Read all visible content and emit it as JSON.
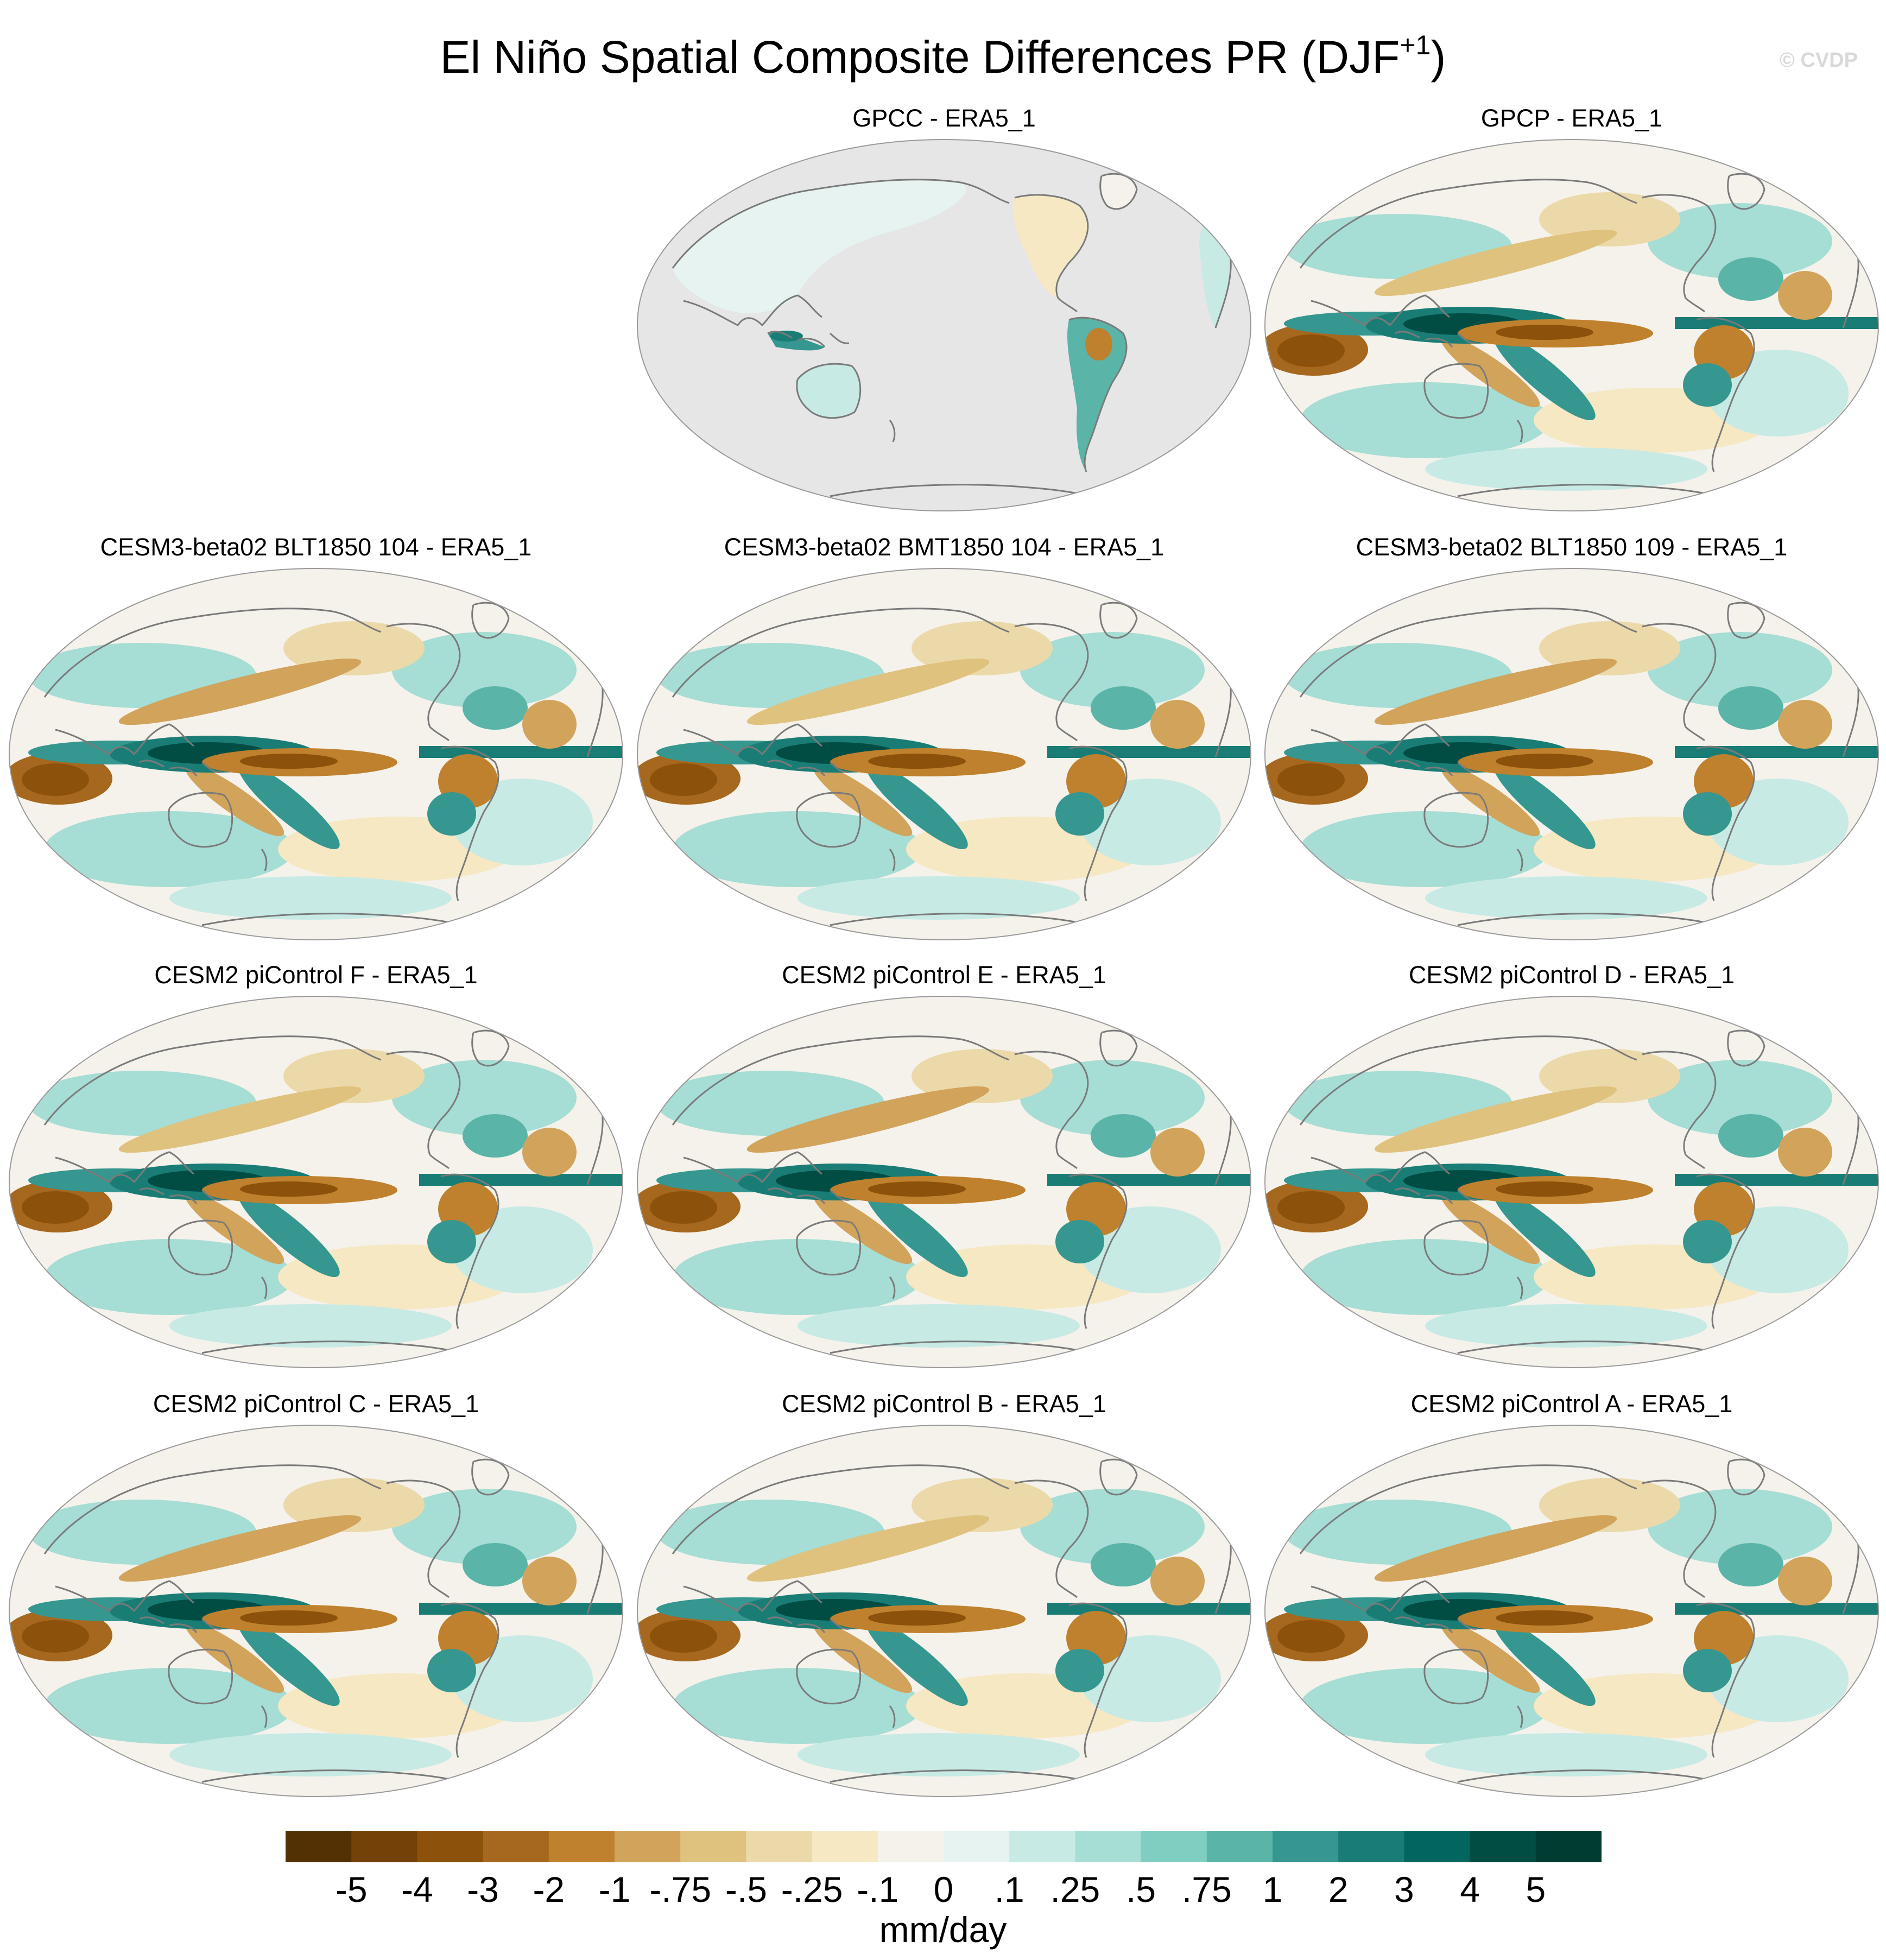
{
  "figure": {
    "title_main": "El Niño Spatial Composite Differences PR (DJF",
    "title_sup": "+1",
    "title_end": ")",
    "watermark": "© CVDP"
  },
  "panels": [
    {
      "title": "GPCC - ERA5_1",
      "fill": "land-only"
    },
    {
      "title": "GPCP - ERA5_1",
      "fill": "global"
    },
    {
      "title": "CESM3-beta02 BLT1850 104 - ERA5_1",
      "fill": "global"
    },
    {
      "title": "CESM3-beta02 BMT1850 104 - ERA5_1",
      "fill": "global"
    },
    {
      "title": "CESM3-beta02 BLT1850 109 - ERA5_1",
      "fill": "global"
    },
    {
      "title": "CESM2 piControl F - ERA5_1",
      "fill": "global"
    },
    {
      "title": "CESM2 piControl E - ERA5_1",
      "fill": "global"
    },
    {
      "title": "CESM2 piControl D - ERA5_1",
      "fill": "global"
    },
    {
      "title": "CESM2 piControl C - ERA5_1",
      "fill": "global"
    },
    {
      "title": "CESM2 piControl B - ERA5_1",
      "fill": "global"
    },
    {
      "title": "CESM2 piControl A - ERA5_1",
      "fill": "global"
    }
  ],
  "colorbar": {
    "units": "mm/day",
    "labels": [
      "-5",
      "-4",
      "-3",
      "-2",
      "-1",
      "-.75",
      "-.5",
      "-.25",
      "-.1",
      "0",
      ".1",
      ".25",
      ".5",
      ".75",
      "1",
      "2",
      "3",
      "4",
      "5"
    ],
    "colors": [
      "#543005",
      "#744109",
      "#8c510a",
      "#a6681e",
      "#bf812d",
      "#d2a35b",
      "#dfc27d",
      "#ecd9aa",
      "#f6e8c3",
      "#f5f2eb",
      "#e6f3f1",
      "#c7eae5",
      "#a6ddd4",
      "#80cdc1",
      "#5ab4a8",
      "#35978f",
      "#1a7d75",
      "#01665e",
      "#014d44",
      "#003c30"
    ]
  },
  "colors": {
    "missing": "#e6e6e6",
    "coast": "#7a7a7a",
    "background": "#ffffff"
  }
}
